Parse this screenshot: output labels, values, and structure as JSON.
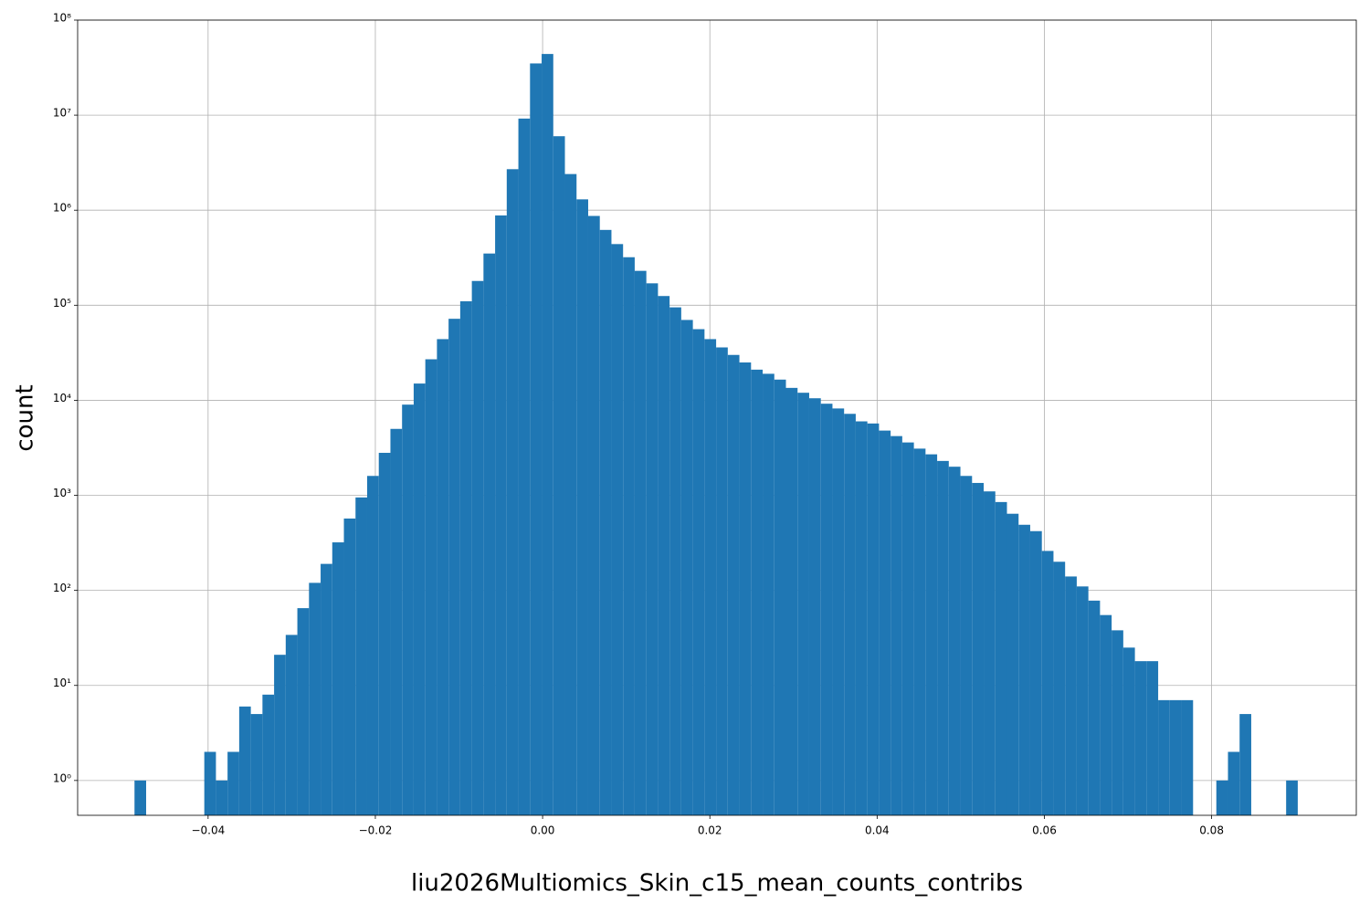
{
  "chart_data": {
    "type": "histogram",
    "x_label": "liu2026Multiomics_Skin_c15_mean_counts_contribs",
    "y_label": "count",
    "color": "#1f77b4",
    "log_y": true,
    "grid": true,
    "xlim": [
      -0.0556,
      0.0973
    ],
    "ylim": [
      0.43,
      100000000
    ],
    "xticks": [
      {
        "value": -0.04,
        "label": "−0.04"
      },
      {
        "value": -0.02,
        "label": "−0.02"
      },
      {
        "value": 0,
        "label": "0.00"
      },
      0.02,
      0.04,
      0.06,
      0.08
    ],
    "yticks": [
      {
        "value": 1,
        "label": "10⁰"
      },
      {
        "value": 10,
        "label": "10¹"
      },
      {
        "value": 100,
        "label": "10²"
      },
      {
        "value": 1000,
        "label": "10³"
      },
      {
        "value": 10000,
        "label": "10⁴"
      },
      {
        "value": 100000,
        "label": "10⁵"
      },
      {
        "value": 1000000,
        "label": "10⁶"
      },
      {
        "value": 10000000,
        "label": "10⁷"
      },
      {
        "value": 100000000,
        "label": "10⁸"
      }
    ],
    "bins": [
      -0.0488,
      -0.047409,
      -0.046018,
      -0.044627,
      -0.043236,
      -0.041845,
      -0.040454,
      -0.039063,
      -0.037672,
      -0.036281,
      -0.03489,
      -0.033499,
      -0.032108,
      -0.030717,
      -0.029326,
      -0.027935,
      -0.026544,
      -0.025153,
      -0.023762,
      -0.022371,
      -0.02098,
      -0.019589,
      -0.018198,
      -0.016807,
      -0.015416,
      -0.014025,
      -0.012634,
      -0.011243,
      -0.009852,
      -0.008461,
      -0.00707,
      -0.005679,
      -0.004288,
      -0.002897,
      -0.001506,
      -0.000115,
      0.001276,
      0.002667,
      0.004058,
      0.005449,
      0.00684,
      0.008231,
      0.009622,
      0.011013,
      0.012404,
      0.013795,
      0.015186,
      0.016577,
      0.017968,
      0.019359,
      0.02075,
      0.022141,
      0.023532,
      0.024923,
      0.026314,
      0.027705,
      0.029096,
      0.030487,
      0.031878,
      0.033269,
      0.03466,
      0.036051,
      0.037442,
      0.038833,
      0.040224,
      0.041615,
      0.043006,
      0.044397,
      0.045788,
      0.047179,
      0.04857,
      0.049961,
      0.051352,
      0.052743,
      0.054134,
      0.055525,
      0.056916,
      0.058307,
      0.059698,
      0.061089,
      0.06248,
      0.063871,
      0.065262,
      0.066653,
      0.068044,
      0.069435,
      0.070826,
      0.072217,
      0.073608,
      0.074999,
      0.07639,
      0.077781,
      0.079172,
      0.080563,
      0.081954,
      0.083345,
      0.084736,
      0.086127,
      0.087518,
      0.088909,
      0.0903
    ],
    "values": [
      1,
      0,
      0,
      0,
      0,
      0,
      2,
      1,
      2,
      6,
      5,
      8,
      21,
      34,
      65,
      120,
      190,
      320,
      570,
      950,
      1600,
      2800,
      5000,
      9000,
      15000,
      27000,
      44000,
      72000,
      110000,
      180000,
      350000,
      880000,
      2700000,
      9200000,
      35000000,
      44000000,
      6000000,
      2400000,
      1300000,
      870000,
      620000,
      440000,
      320000,
      230000,
      170000,
      125000,
      95000,
      70000,
      56000,
      44000,
      36000,
      30000,
      25000,
      21000,
      19000,
      16500,
      13500,
      12000,
      10500,
      9200,
      8200,
      7200,
      6000,
      5700,
      4800,
      4200,
      3600,
      3100,
      2700,
      2300,
      2000,
      1600,
      1350,
      1100,
      850,
      640,
      490,
      420,
      260,
      200,
      140,
      110,
      78,
      55,
      38,
      25,
      18,
      18,
      7,
      7,
      7,
      0,
      0,
      1,
      2,
      5,
      0,
      0,
      0,
      1
    ]
  }
}
